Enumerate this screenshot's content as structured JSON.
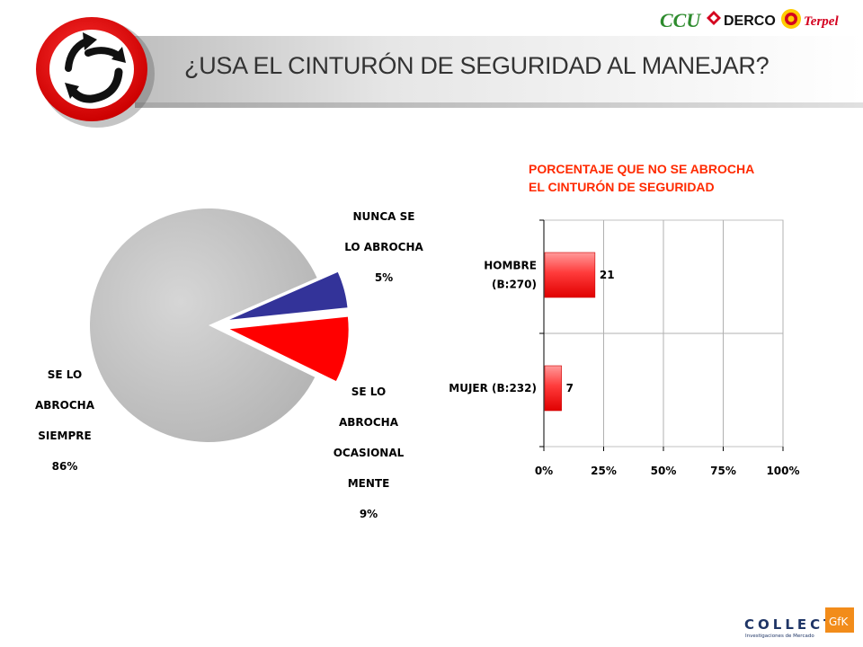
{
  "header": {
    "title": "¿USA EL CINTURÓN DE SEGURIDAD AL MANEJAR?",
    "sign_icon": "seatbelt-arrows-sign-icon",
    "brands": [
      {
        "name": "CCU",
        "color": "#2e8b2e"
      },
      {
        "name": "DERCO",
        "color": "#111111"
      },
      {
        "name": "Terpel",
        "color": "#d4001f"
      }
    ]
  },
  "footer": {
    "logo_text": "COLLECT",
    "logo_subtext": "Investigaciones de Mercado",
    "logo_badge": "GfK",
    "logo_icon": "collect-gfk-logo-icon"
  },
  "chart_data": [
    {
      "type": "pie",
      "slices": [
        {
          "label_lines": [
            "NUNCA SE",
            "LO ABROCHA"
          ],
          "value": 5,
          "value_label": "5%",
          "color": "#333399",
          "exploded": true
        },
        {
          "label_lines": [
            "SE LO",
            "ABROCHA",
            "OCASIONAL",
            "MENTE"
          ],
          "value": 9,
          "value_label": "9%",
          "color": "#ff0000",
          "exploded": true
        },
        {
          "label_lines": [
            "SE LO",
            "ABROCHA",
            "SIEMPRE"
          ],
          "value": 86,
          "value_label": "86%",
          "color": "#c0c0c0",
          "exploded": false
        }
      ]
    },
    {
      "type": "bar",
      "orientation": "horizontal",
      "title_lines": [
        "PORCENTAJE QUE NO SE ABROCHA",
        "EL CINTURÓN DE SEGURIDAD"
      ],
      "categories": [
        {
          "label_lines": [
            "HOMBRE",
            "(B:270)"
          ]
        },
        {
          "label_lines": [
            "MUJER (B:232)"
          ]
        }
      ],
      "values": [
        21,
        7
      ],
      "value_labels": [
        "21",
        "7"
      ],
      "xlim": [
        0,
        100
      ],
      "xticks": [
        0,
        25,
        50,
        75,
        100
      ],
      "xtick_labels": [
        "0%",
        "25%",
        "50%",
        "75%",
        "100%"
      ],
      "grid": true,
      "bar_color": "#ff3b3b",
      "bar_color_light": "#ff9a9a"
    }
  ]
}
